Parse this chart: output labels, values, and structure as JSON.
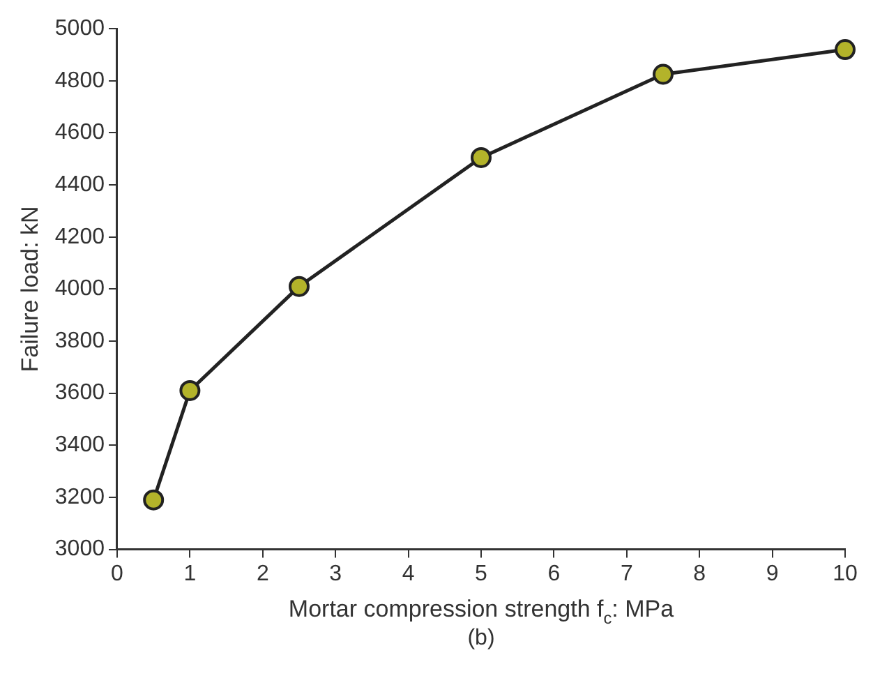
{
  "chart_data": {
    "type": "line",
    "xlabel": "Mortar compression strength f$_{c}$: MPa",
    "ylabel": "Failure load: kN",
    "annotations": [
      "(b)"
    ],
    "x": [
      0.5,
      1,
      2.5,
      5,
      7.5,
      10
    ],
    "series": [
      {
        "color": "#b3b32a",
        "values": [
          3190,
          3610,
          4010,
          4505,
          4825,
          4920
        ]
      }
    ],
    "xlim": [
      0,
      10
    ],
    "xticks": [
      0,
      1,
      2,
      3,
      4,
      5,
      6,
      7,
      8,
      9,
      10
    ],
    "ylim": [
      3000,
      5000
    ],
    "yticks": [
      3000,
      3200,
      3400,
      3600,
      3800,
      4000,
      4200,
      4400,
      4600,
      4800,
      5000
    ],
    "grid": false,
    "legend": false,
    "marker": "circle",
    "line_style": "solid"
  }
}
